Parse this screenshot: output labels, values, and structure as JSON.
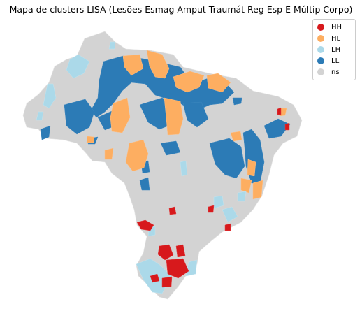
{
  "title": "Mapa de clusters LISA (Lesões Esmag Amput Traumát Reg Esp E Múltip Corpo)",
  "legend": [
    {
      "label": "HH",
      "color": "#d7191c"
    },
    {
      "label": "HL",
      "color": "#fdae61"
    },
    {
      "label": "LH",
      "color": "#abd9e9"
    },
    {
      "label": "LL",
      "color": "#2c7bb6"
    },
    {
      "label": "ns",
      "color": "#d3d3d3"
    }
  ]
}
